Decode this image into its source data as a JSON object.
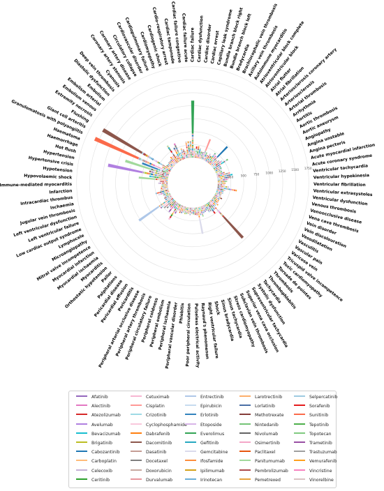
{
  "chart_data": {
    "type": "bar",
    "layout": "radial-stacked",
    "r_ticks": [
      250,
      500,
      750,
      1000,
      1250,
      1500,
      1750
    ],
    "r_max": 1800,
    "categories": [
      "Cardiac failure",
      "Cardiac dysfunction",
      "Cardiac disorder",
      "Cardiac arrest",
      "Capillary leak syndrome",
      "Bundle branch block right",
      "Bundle branch block left",
      "Bradycardia",
      "Brachiocephalic vein thrombosis",
      "Axillary vein thrombosis",
      "Autoimmune myocarditis",
      "Atrioventricular block complete",
      "Atrioventricular block",
      "Atrial flutter",
      "Atrial fibrillation",
      "Arteriosclerosis coronary artery",
      "Arteriosclerosis",
      "Arterial thrombosis",
      "Arrhythmia",
      "Aortitis",
      "Aortic thrombosis",
      "Aortic aneurysm",
      "Angiopathy",
      "Angina unstable",
      "Angina pectoris",
      "Acute myocardial infarction",
      "Acute coronary syndrome",
      "Ventricular tachycardia",
      "Ventricular hypokinesia",
      "Ventricular fibrillation",
      "Ventricular extrasystoles",
      "Ventricular dysfunction",
      "Venous thrombosis",
      "Venoocclusive disease",
      "Vena cava thrombosis",
      "Vein disorder",
      "Vein discolouration",
      "Vasodilatation",
      "Vasculitis",
      "Vascular pain",
      "Varicose vein",
      "Tricuspid valve incompetence",
      "Toxic cardiomyopathy",
      "Torsade de pointes",
      "Thrombosis",
      "Thrombophlebitis",
      "Tachycardia",
      "Systolic dysfunction",
      "Supraventricular tachycardia",
      "Superior vena cava occlusion",
      "Subclavian vein thrombosis",
      "Stress cardiomyopathy",
      "Sinus tachycardia",
      "Sinus bradycardia",
      "Shock",
      "Right ventricular failure",
      "Raynaud's phenomenon",
      "Pulseless electrical activity",
      "Poor peripheral circulation",
      "Phlebitis",
      "Peripheral vascular disorder",
      "Peripheral ischaemia",
      "Peripheral embolism",
      "Peripheral coldness",
      "Peripheral circulatory failure",
      "Peripheral artery thrombosis",
      "Peripheral arterial occlusive disease",
      "Pericarditis",
      "Pericardial effusion",
      "Pericardial disease",
      "Palpitations",
      "Pallor",
      "Orthostatic hypotension",
      "Myocarditis",
      "Myocardial ischaemia",
      "Myocardial infarction",
      "Mitral valve incompetence",
      "Microangiopathy",
      "Lymphocele",
      "Low cardiac output syndrome",
      "Left ventricular failure",
      "Left ventricular dysfunction",
      "Jugular vein thrombosis",
      "Ischaemia",
      "Intracardiac thrombus",
      "Infarction",
      "Immune-mediated myocarditis",
      "Hypovolaemic shock",
      "Hypotension",
      "Hypertensive crisis",
      "Hypertension",
      "Hot flush",
      "Haemorrhage",
      "Haematoma",
      "Granulomatosis with polyangiitis",
      "Giant cell arteritis",
      "Flushing",
      "Extremity necrosis",
      "Embolism venous",
      "Embolism arterial",
      "Embolism",
      "Diastolic dysfunction",
      "Deep vein thrombosis",
      "Cyanosis",
      "Coronary artery stenosis",
      "Coronary artery disease",
      "Circulatory collapse",
      "Cardiovascular disorder",
      "Cardiopulmonary failure",
      "Cardiomyopathy",
      "Cardiogenic shock",
      "Cardio-respiratory arrest",
      "Cardiac tamponade",
      "Cardiac failure congestive",
      "Cardiac failure acute"
    ],
    "totals": [
      1100,
      180,
      220,
      230,
      200,
      150,
      140,
      420,
      160,
      120,
      170,
      140,
      230,
      200,
      480,
      150,
      180,
      220,
      330,
      140,
      150,
      130,
      120,
      160,
      260,
      300,
      250,
      200,
      180,
      150,
      140,
      220,
      380,
      160,
      130,
      140,
      110,
      120,
      160,
      120,
      130,
      140,
      170,
      140,
      950,
      180,
      250,
      170,
      170,
      120,
      130,
      140,
      200,
      160,
      520,
      150,
      140,
      130,
      120,
      150,
      120,
      130,
      140,
      120,
      140,
      150,
      110,
      200,
      360,
      130,
      240,
      160,
      210,
      250,
      300,
      780,
      150,
      140,
      120,
      130,
      220,
      260,
      150,
      140,
      130,
      120,
      180,
      150,
      560,
      360,
      1180,
      380,
      880,
      560,
      1580,
      180,
      1520,
      120,
      110,
      120,
      120,
      140,
      170,
      160,
      380,
      140,
      280,
      350,
      140,
      210,
      190,
      140,
      320,
      320,
      320,
      800,
      300
    ],
    "series": [
      {
        "name": "Afatinib",
        "color": "#9467bd"
      },
      {
        "name": "Alectinib",
        "color": "#e377c2"
      },
      {
        "name": "Atezolizumab",
        "color": "#d62728"
      },
      {
        "name": "Avelumab",
        "color": "#b07fe0"
      },
      {
        "name": "Bevacizumab",
        "color": "#17becf"
      },
      {
        "name": "Brigatinib",
        "color": "#bcbd22"
      },
      {
        "name": "Cabozantinib",
        "color": "#1f77b4"
      },
      {
        "name": "Carboplatin",
        "color": "#ffbb78"
      },
      {
        "name": "Celecoxib",
        "color": "#c5b0d5"
      },
      {
        "name": "Ceritinib",
        "color": "#2ca02c"
      },
      {
        "name": "Cetuximab",
        "color": "#f7b6d2"
      },
      {
        "name": "Cisplatin",
        "color": "#ff9896"
      },
      {
        "name": "Crizotinib",
        "color": "#9edae5"
      },
      {
        "name": "Cyclophosphamide",
        "color": "#f9c8dc"
      },
      {
        "name": "Dabrafenib",
        "color": "#ff7f0e"
      },
      {
        "name": "Dacomitinib",
        "color": "#8c564b"
      },
      {
        "name": "Dasatinib",
        "color": "#c49c94"
      },
      {
        "name": "Docetaxel",
        "color": "#7f7f7f"
      },
      {
        "name": "Doxorubicin",
        "color": "#c7a9a0"
      },
      {
        "name": "Durvalumab",
        "color": "#e7969c"
      },
      {
        "name": "Entrectinib",
        "color": "#aec7e8"
      },
      {
        "name": "Epirubicin",
        "color": "#c6dbef"
      },
      {
        "name": "Erlotinib",
        "color": "#3182bd"
      },
      {
        "name": "Etoposide",
        "color": "#d8b5e8"
      },
      {
        "name": "Everolimus",
        "color": "#31a354"
      },
      {
        "name": "Gefitinib",
        "color": "#26a8c0"
      },
      {
        "name": "Gemcitabine",
        "color": "#dadaeb"
      },
      {
        "name": "Ifosfamide",
        "color": "#fd8d3c"
      },
      {
        "name": "Ipilimumab",
        "color": "#d4a017"
      },
      {
        "name": "Irinotecan",
        "color": "#6baed6"
      },
      {
        "name": "Larotrectinib",
        "color": "#fdae6b"
      },
      {
        "name": "Lorlatinib",
        "color": "#4a6fa5"
      },
      {
        "name": "Methotrexate",
        "color": "#843c39"
      },
      {
        "name": "Nintedanib",
        "color": "#74c476"
      },
      {
        "name": "Nivolumab",
        "color": "#636363"
      },
      {
        "name": "Osimertinib",
        "color": "#f4a6c8"
      },
      {
        "name": "Paclitaxel",
        "color": "#e6550d"
      },
      {
        "name": "Panitumumab",
        "color": "#a1d99b"
      },
      {
        "name": "Pembrolizumab",
        "color": "#ad494a"
      },
      {
        "name": "Pemetrexed",
        "color": "#e6a23c"
      },
      {
        "name": "Selpercatinib",
        "color": "#9ecae1"
      },
      {
        "name": "Sorafenib",
        "color": "#e41a1c"
      },
      {
        "name": "Sunitinib",
        "color": "#fb6a4a"
      },
      {
        "name": "Tepotinib",
        "color": "#4daf4a"
      },
      {
        "name": "Topotecan",
        "color": "#7fc97f"
      },
      {
        "name": "Trametinib",
        "color": "#984ea3"
      },
      {
        "name": "Trastuzumab",
        "color": "#9e9e9e"
      },
      {
        "name": "Vemurafenib",
        "color": "#ff9f1c"
      },
      {
        "name": "Vincristine",
        "color": "#f781bf"
      },
      {
        "name": "Vinorelbine",
        "color": "#d9c2c2"
      }
    ]
  }
}
